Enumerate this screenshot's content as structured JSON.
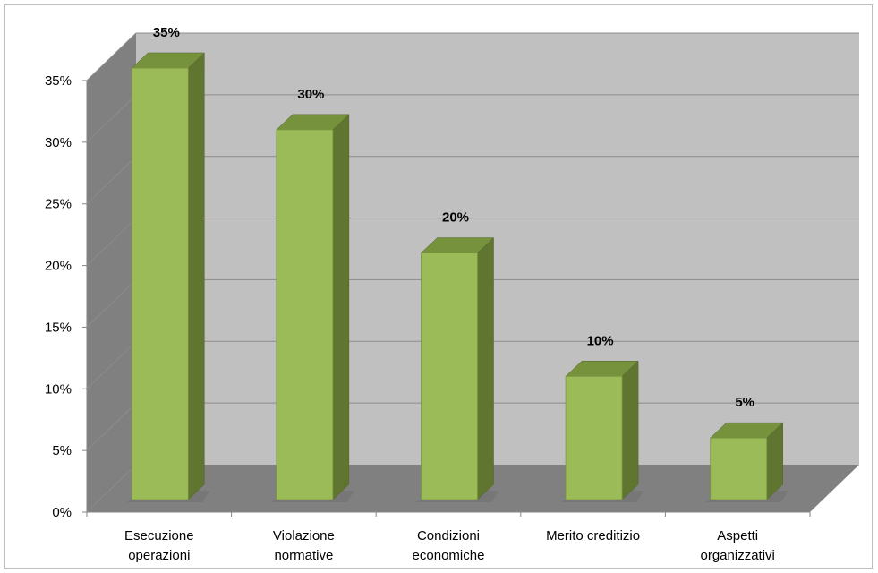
{
  "chart_data": {
    "type": "bar",
    "style": "3d-column",
    "categories": [
      [
        "Esecuzione",
        "operazioni"
      ],
      [
        "Violazione",
        "normative"
      ],
      [
        "Condizioni",
        "economiche"
      ],
      [
        "Merito creditizio"
      ],
      [
        "Aspetti",
        "organizzativi"
      ]
    ],
    "values": [
      35,
      30,
      20,
      10,
      5
    ],
    "data_labels": [
      "35%",
      "30%",
      "20%",
      "10%",
      "5%"
    ],
    "ylim": [
      0,
      35
    ],
    "yticks": [
      0,
      5,
      10,
      15,
      20,
      25,
      30,
      35
    ],
    "ytick_labels": [
      "0%",
      "5%",
      "10%",
      "15%",
      "20%",
      "25%",
      "30%",
      "35%"
    ],
    "grid": true,
    "legend": "none",
    "colors": {
      "bar_front": "#9bbb59",
      "bar_side": "#5f7530",
      "bar_top": "#76923c",
      "back_wall": "#c0c0c0",
      "side_wall": "#808080",
      "floor": "#808080",
      "gridline": "#8c8c8c"
    }
  }
}
